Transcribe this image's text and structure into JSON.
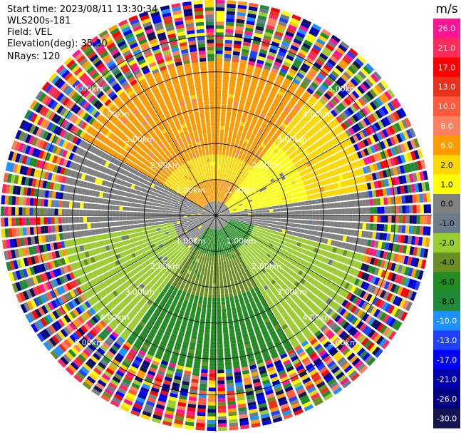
{
  "info": {
    "start_time": "Start time: 2023/08/11 13:30:34",
    "instrument": "WLS200s-181",
    "field": "Field: VEL",
    "elevation": "Elevation(deg): 35.30",
    "nrays": "NRays: 120"
  },
  "chart_data": {
    "type": "heatmap",
    "subtype": "polar-ppi",
    "field": "VEL",
    "units": "m/s",
    "nrays": 120,
    "max_range_km": 6.0,
    "range_ring_labels": [
      "1.00km",
      "2.00km",
      "3.00km",
      "4.00km",
      "5.00km"
    ],
    "range_rings_km": [
      1,
      2,
      3,
      4,
      5
    ],
    "colorbar": {
      "title": "m/s",
      "labels": [
        "26.0",
        "21.0",
        "17.0",
        "13.0",
        "10.0",
        "8.0",
        "6.0",
        "2.0",
        "1.0",
        "0.0",
        "-1.0",
        "-2.0",
        "-4.0",
        "-6.0",
        "-8.0",
        "-10.0",
        "-13.0",
        "-17.0",
        "-21.0",
        "-26.0",
        "-30.0"
      ],
      "colors": [
        "#ff1493",
        "#ff2a5a",
        "#ff0000",
        "#e8301a",
        "#ff5a3c",
        "#ff8060",
        "#ff9a00",
        "#ffd700",
        "#ffff00",
        "#808080",
        "#6b7b8c",
        "#9acd32",
        "#6b8e23",
        "#228b22",
        "#1f8a3a",
        "#1e90ff",
        "#1e40ff",
        "#0000ff",
        "#0000aa",
        "#000080",
        "#141450"
      ]
    },
    "wind_pattern": {
      "north": "6.0",
      "north_east": "2.0",
      "east": "0.0",
      "south_east": "-4.0",
      "south": "-6.0",
      "south_west": "-2.0",
      "west": "0.0",
      "north_west": "2.0"
    },
    "clean_data_range_km": 4.2
  }
}
